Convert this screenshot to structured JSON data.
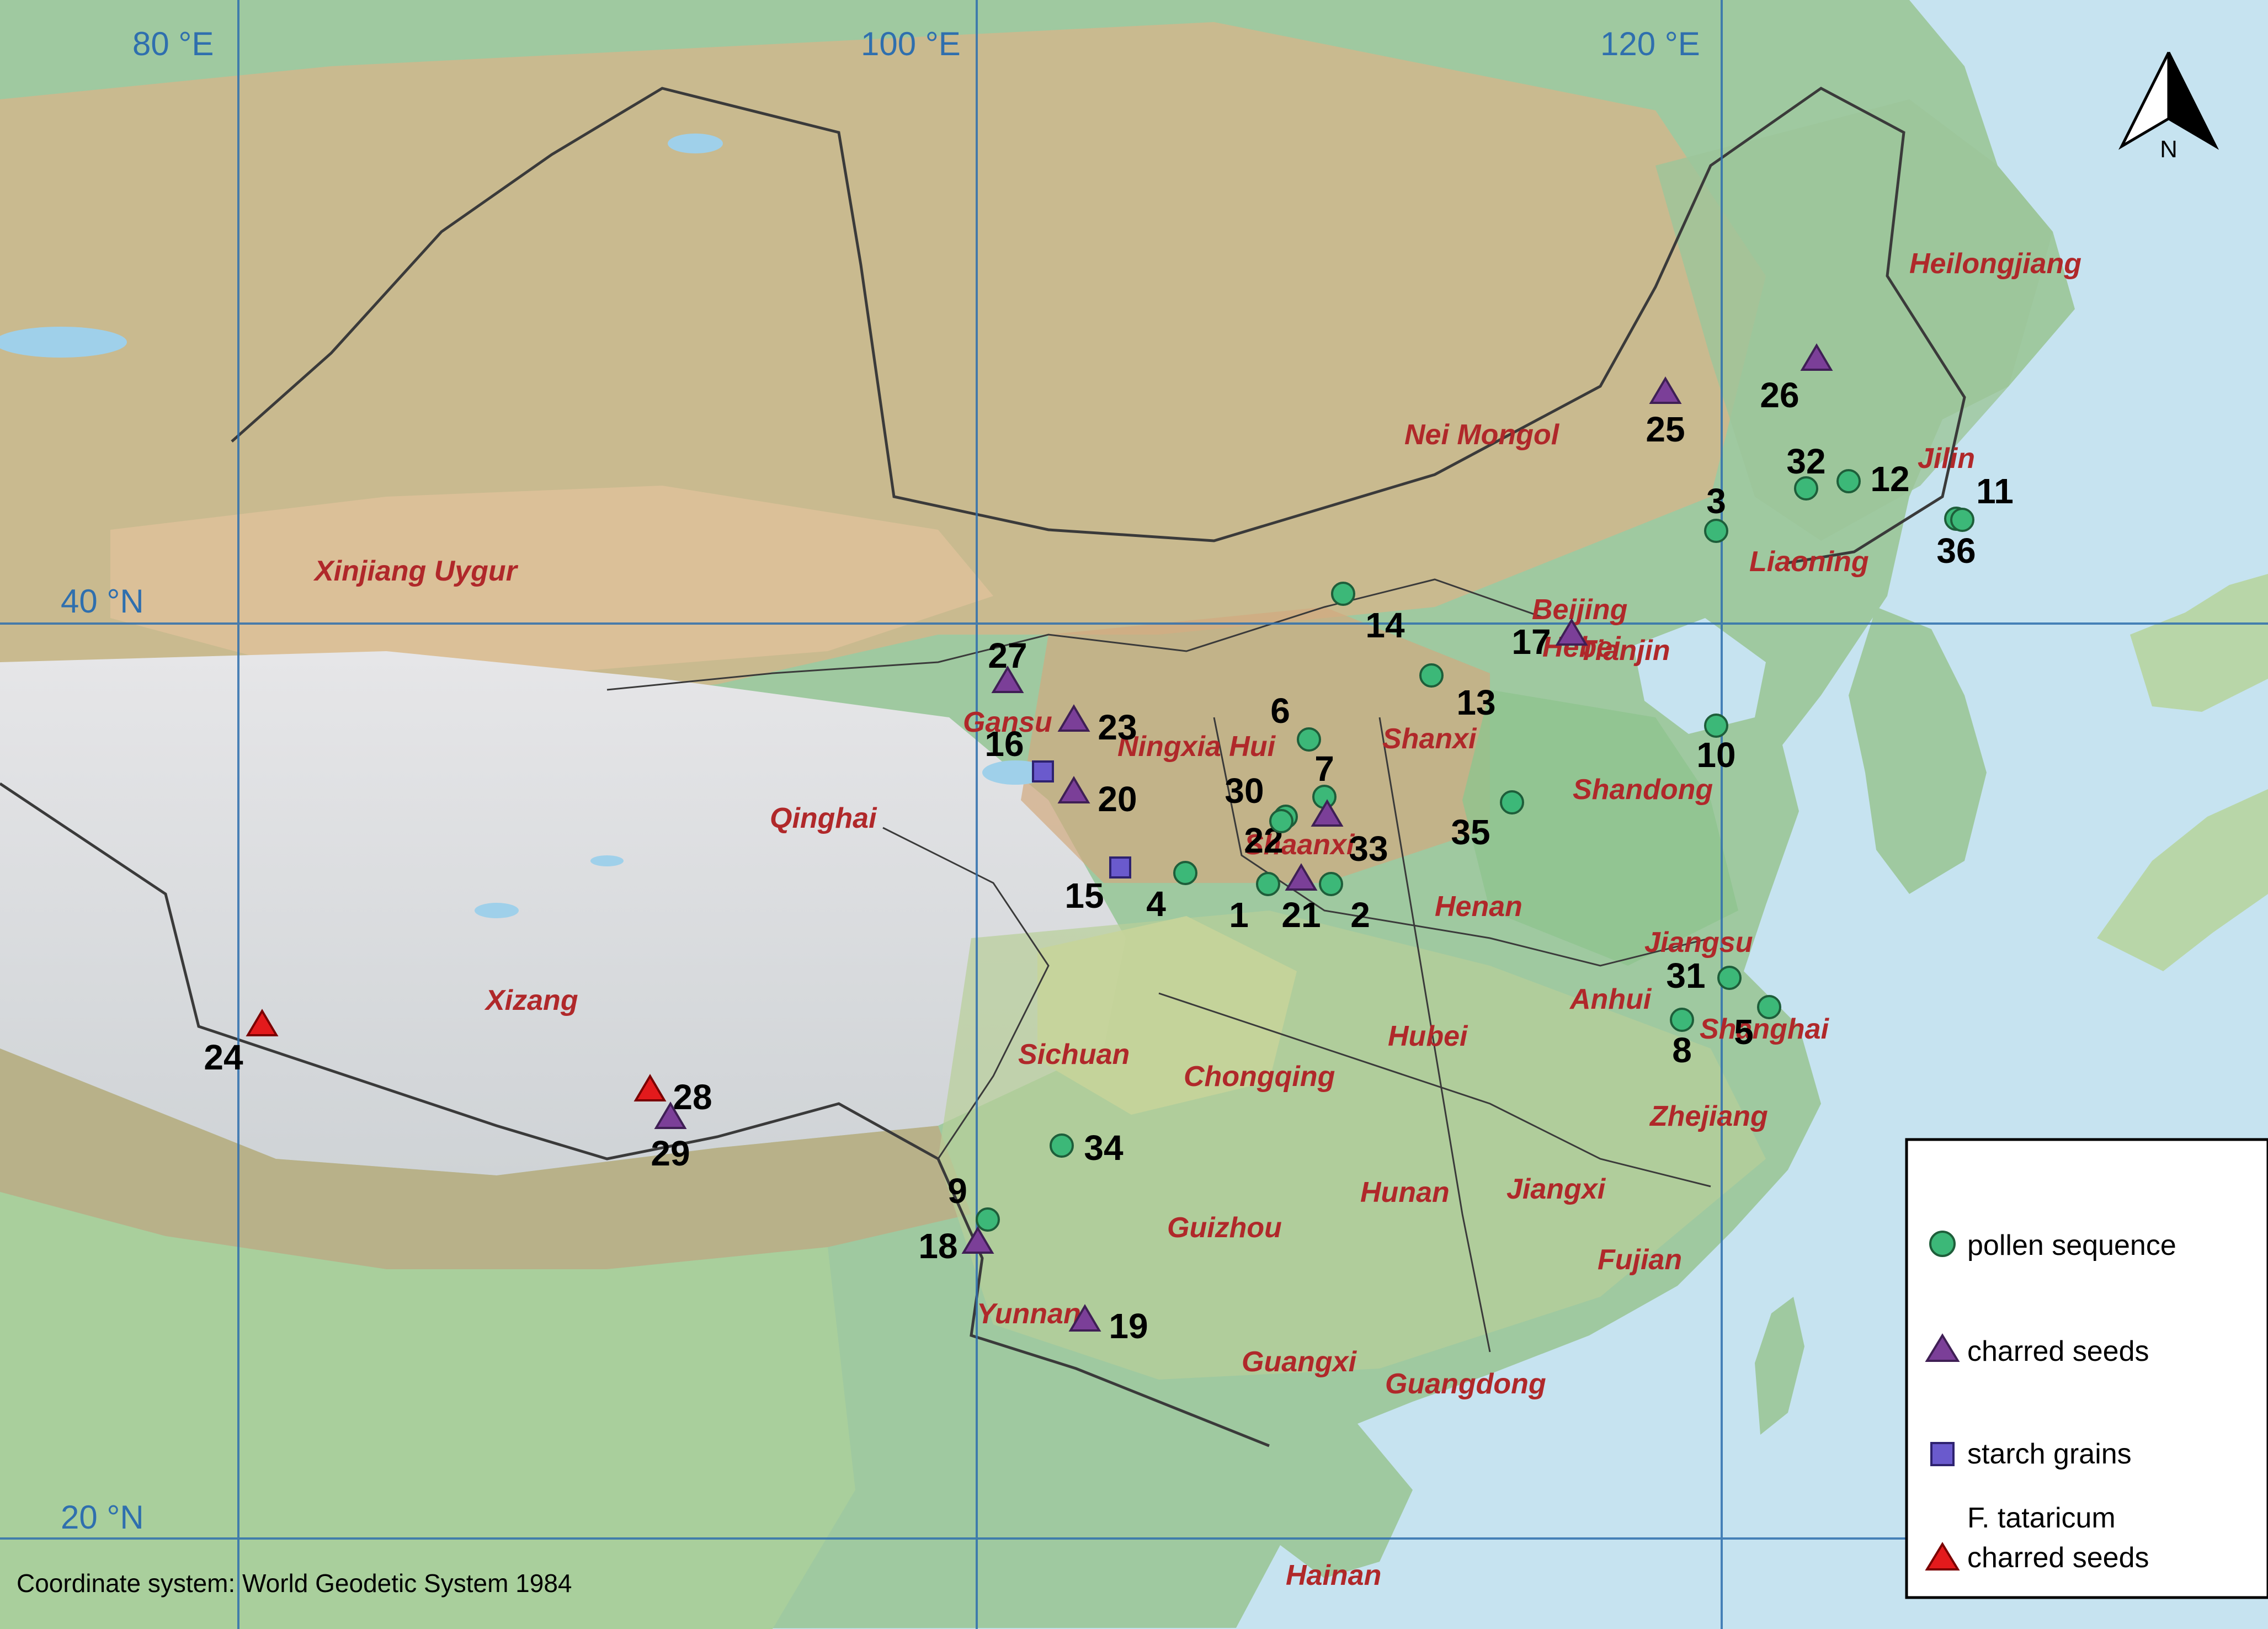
{
  "grid": {
    "lon_labels": [
      "80 °E",
      "100 °E",
      "120 °E"
    ],
    "lat_labels": [
      "40 °N",
      "20 °N"
    ]
  },
  "provinces": [
    "Heilongjiang",
    "Nei Mongol",
    "Jilin",
    "Liaoning",
    "Xinjiang Uygur",
    "Beijing",
    "Hebei",
    "Tianjin",
    "Gansu",
    "Ningxia Hui",
    "Shanxi",
    "Shandong",
    "Qinghai",
    "Shaanxi",
    "Henan",
    "Jiangsu",
    "Anhui",
    "Shanghai",
    "Xizang",
    "Sichuan",
    "Hubei",
    "Chongqing",
    "Zhejiang",
    "Hunan",
    "Jiangxi",
    "Guizhou",
    "Fujian",
    "Yunnan",
    "Guangxi",
    "Guangdong",
    "Hainan"
  ],
  "site_types": {
    "pollen": "pollen sequence",
    "seed": "charred seeds",
    "starch": "starch grains",
    "tatar": "F. tataricum charred seeds"
  },
  "sites": [
    {
      "id": "1",
      "type": "pollen"
    },
    {
      "id": "2",
      "type": "pollen"
    },
    {
      "id": "3",
      "type": "pollen"
    },
    {
      "id": "4",
      "type": "pollen"
    },
    {
      "id": "5",
      "type": "pollen"
    },
    {
      "id": "6",
      "type": "pollen"
    },
    {
      "id": "7",
      "type": "pollen"
    },
    {
      "id": "8",
      "type": "pollen"
    },
    {
      "id": "9",
      "type": "pollen"
    },
    {
      "id": "10",
      "type": "pollen"
    },
    {
      "id": "11",
      "type": "pollen"
    },
    {
      "id": "12",
      "type": "pollen"
    },
    {
      "id": "13",
      "type": "pollen"
    },
    {
      "id": "14",
      "type": "pollen"
    },
    {
      "id": "15",
      "type": "starch"
    },
    {
      "id": "16",
      "type": "starch"
    },
    {
      "id": "17",
      "type": "seed"
    },
    {
      "id": "18",
      "type": "seed"
    },
    {
      "id": "19",
      "type": "seed"
    },
    {
      "id": "20",
      "type": "seed"
    },
    {
      "id": "21",
      "type": "seed"
    },
    {
      "id": "22",
      "type": "pollen"
    },
    {
      "id": "23",
      "type": "seed"
    },
    {
      "id": "24",
      "type": "tatar"
    },
    {
      "id": "25",
      "type": "seed"
    },
    {
      "id": "26",
      "type": "seed"
    },
    {
      "id": "27",
      "type": "seed"
    },
    {
      "id": "28",
      "type": "tatar"
    },
    {
      "id": "29",
      "type": "seed"
    },
    {
      "id": "30",
      "type": "pollen"
    },
    {
      "id": "31",
      "type": "pollen"
    },
    {
      "id": "32",
      "type": "pollen"
    },
    {
      "id": "33",
      "type": "seed"
    },
    {
      "id": "34",
      "type": "pollen"
    },
    {
      "id": "35",
      "type": "pollen"
    },
    {
      "id": "36",
      "type": "pollen"
    }
  ],
  "legend": {
    "pollen": "pollen sequence",
    "seed": "charred seeds",
    "starch": "starch grains",
    "tatar_line1": "F. tataricum",
    "tatar_line2": "charred seeds"
  },
  "compass": {
    "label": "N"
  },
  "credit": "Coordinate system: World Geodetic System 1984",
  "colors": {
    "pollen": "#3cb878",
    "seed": "#7b3f98",
    "starch": "#6a5acd",
    "tatar": "#e31a1c",
    "province_label": "#b0282a",
    "grid": "#2f6fae",
    "sea": "#c6e3f0"
  }
}
